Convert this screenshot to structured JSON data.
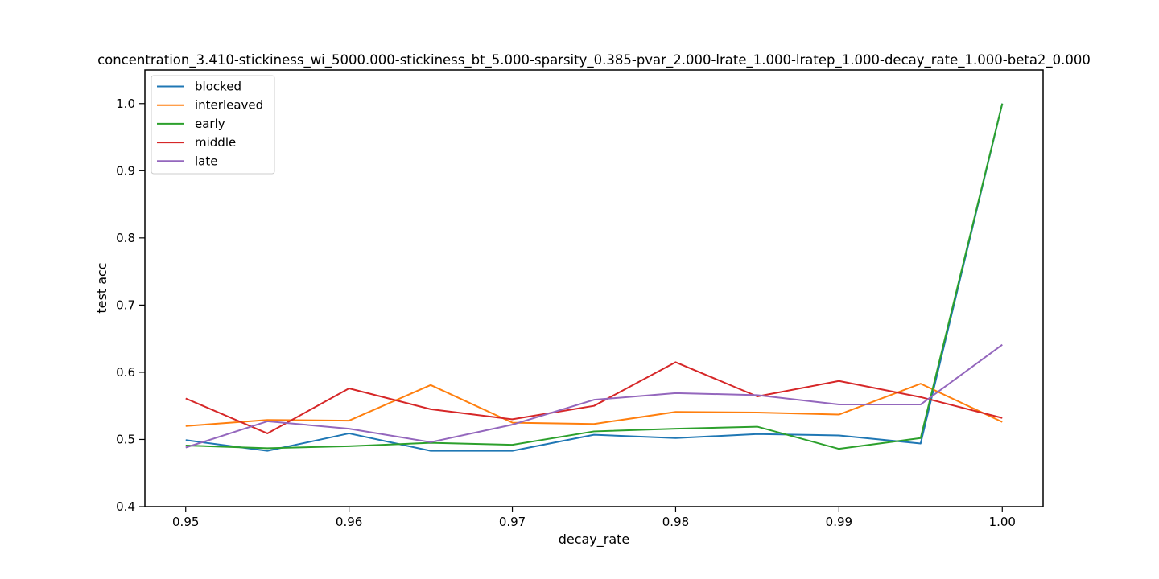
{
  "chart_data": {
    "type": "line",
    "title": "concentration_3.410-stickiness_wi_5000.000-stickiness_bt_5.000-sparsity_0.385-pvar_2.000-lrate_1.000-lratep_1.000-decay_rate_1.000-beta2_0.000",
    "xlabel": "decay_rate",
    "ylabel": "test acc",
    "xlim": [
      0.9475,
      1.0025
    ],
    "ylim": [
      0.4,
      1.05
    ],
    "xticks": [
      0.95,
      0.96,
      0.97,
      0.98,
      0.99,
      1.0
    ],
    "xtick_labels": [
      "0.95",
      "0.96",
      "0.97",
      "0.98",
      "0.99",
      "1.00"
    ],
    "yticks": [
      0.4,
      0.5,
      0.6,
      0.7,
      0.8,
      0.9,
      1.0
    ],
    "ytick_labels": [
      "0.4",
      "0.5",
      "0.6",
      "0.7",
      "0.8",
      "0.9",
      "1.0"
    ],
    "grid": false,
    "legend_position": "upper-left",
    "x": [
      0.95,
      0.955,
      0.96,
      0.965,
      0.97,
      0.975,
      0.98,
      0.985,
      0.99,
      0.995,
      1.0
    ],
    "series": [
      {
        "name": "blocked",
        "color": "#1f77b4",
        "values": [
          0.499,
          0.483,
          0.509,
          0.483,
          0.483,
          0.507,
          0.502,
          0.508,
          0.506,
          0.494,
          1.0
        ]
      },
      {
        "name": "interleaved",
        "color": "#ff7f0e",
        "values": [
          0.52,
          0.529,
          0.528,
          0.581,
          0.525,
          0.523,
          0.541,
          0.54,
          0.537,
          0.583,
          0.526
        ]
      },
      {
        "name": "early",
        "color": "#2ca02c",
        "values": [
          0.491,
          0.487,
          0.49,
          0.495,
          0.492,
          0.512,
          0.516,
          0.519,
          0.486,
          0.502,
          1.0
        ]
      },
      {
        "name": "middle",
        "color": "#d62728",
        "values": [
          0.561,
          0.509,
          0.576,
          0.545,
          0.53,
          0.55,
          0.615,
          0.564,
          0.587,
          0.563,
          0.532
        ]
      },
      {
        "name": "late",
        "color": "#9467bd",
        "values": [
          0.488,
          0.527,
          0.516,
          0.496,
          0.522,
          0.559,
          0.569,
          0.566,
          0.552,
          0.552,
          0.641
        ]
      }
    ]
  }
}
